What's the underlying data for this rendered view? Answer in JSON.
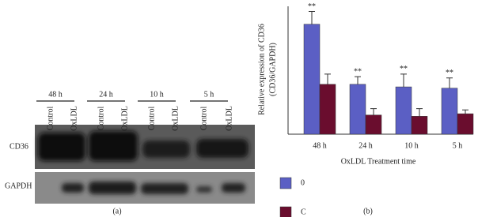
{
  "blot": {
    "groups": [
      "48 h",
      "24 h",
      "10 h",
      "5 h"
    ],
    "lanes": [
      "Control",
      "OxLDL",
      "Control",
      "OxLDL",
      "Control",
      "OxLDL",
      "Control",
      "OxLDL"
    ],
    "rows": [
      "CD36",
      "GAPDH"
    ],
    "panel_label": "(a)"
  },
  "chart_data": {
    "type": "bar",
    "panel_label": "(b)",
    "y_label": [
      "Relative expression of CD36",
      "(CD36/GAPDH)"
    ],
    "x_label": "OxLDL Treatment time",
    "categories": [
      "48 h",
      "24 h",
      "10 h",
      "5 h"
    ],
    "series": [
      {
        "name": "0",
        "color": "#5b5fc4",
        "values": [
          0.86,
          0.39,
          0.37,
          0.36
        ],
        "errors": [
          0.1,
          0.06,
          0.1,
          0.08
        ]
      },
      {
        "name": "C",
        "color": "#6a0d2e",
        "values": [
          0.39,
          0.15,
          0.14,
          0.16
        ],
        "errors": [
          0.08,
          0.05,
          0.06,
          0.03
        ]
      }
    ],
    "annotations": [
      "**",
      "**",
      "**",
      "**"
    ],
    "ylim": [
      0,
      1
    ],
    "legend": "bottom-left"
  }
}
